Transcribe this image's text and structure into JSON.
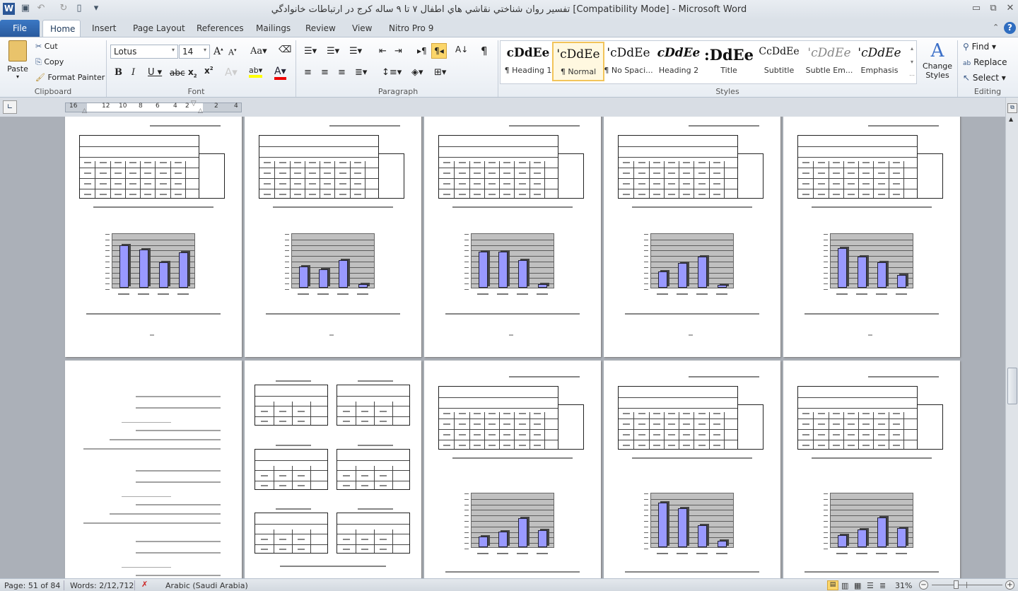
{
  "window": {
    "title": "تفسير روان شناختي نقاشي هاي اطفال ۷ تا ۹ ساله كرج در ارتباطات خانوادگي [Compatibility Mode]  -  Microsoft Word",
    "app_icon": "word-icon"
  },
  "quick_access": [
    "save-icon",
    "undo-icon",
    "redo-icon",
    "new-document-icon",
    "customize-icon"
  ],
  "tabs": [
    {
      "label": "File"
    },
    {
      "label": "Home",
      "active": true
    },
    {
      "label": "Insert"
    },
    {
      "label": "Page Layout"
    },
    {
      "label": "References"
    },
    {
      "label": "Mailings"
    },
    {
      "label": "Review"
    },
    {
      "label": "View"
    },
    {
      "label": "Nitro Pro 9"
    }
  ],
  "ribbon": {
    "clipboard": {
      "label": "Clipboard",
      "paste": "Paste",
      "cut": "Cut",
      "copy": "Copy",
      "format_painter": "Format Painter"
    },
    "font": {
      "label": "Font",
      "font_name": "Lotus",
      "font_size": "14"
    },
    "paragraph": {
      "label": "Paragraph"
    },
    "styles": {
      "label": "Styles",
      "items": [
        {
          "sample": "cDdEe",
          "name": "¶ Heading 1"
        },
        {
          "sample": "'cDdEe",
          "name": "¶ Normal",
          "selected": true
        },
        {
          "sample": "'cDdEe",
          "name": "¶ No Spaci..."
        },
        {
          "sample": "cDdEe",
          "name": "Heading 2"
        },
        {
          "sample": ":DdEe",
          "name": "Title"
        },
        {
          "sample": "CcDdEe",
          "name": "Subtitle"
        },
        {
          "sample": "'cDdEe",
          "name": "Subtle Em..."
        },
        {
          "sample": "'cDdEe",
          "name": "Emphasis"
        }
      ],
      "change_styles": "Change Styles"
    },
    "editing": {
      "label": "Editing",
      "find": "Find",
      "replace": "Replace",
      "select": "Select"
    }
  },
  "ruler": {
    "ticks": [
      "16",
      "12",
      "10",
      "8",
      "6",
      "4",
      "2",
      "2",
      "4"
    ]
  },
  "pages": {
    "top": [
      {
        "chart": [
          77,
          69,
          46,
          64
        ]
      },
      {
        "chart": [
          38,
          33,
          50,
          7
        ]
      },
      {
        "chart": [
          65,
          65,
          50,
          7
        ]
      },
      {
        "chart": [
          30,
          45,
          56,
          5
        ]
      },
      {
        "chart": [
          72,
          57,
          46,
          23
        ]
      }
    ],
    "bottom": [
      {
        "kind": "text"
      },
      {
        "kind": "mini-tables"
      },
      {
        "chart": [
          19,
          28,
          52,
          31
        ]
      },
      {
        "chart": [
          81,
          71,
          40,
          12
        ]
      },
      {
        "chart": [
          22,
          32,
          54,
          34
        ]
      }
    ]
  },
  "status": {
    "page": "Page: 51 of 84",
    "words": "Words: 2/12,712",
    "language": "Arabic (Saudi Arabia)",
    "zoom": "31%",
    "zoom_level": 0.31
  },
  "colors": {
    "bar": "#9999ff",
    "chart_bg": "#c0c0c0",
    "accent": "#2b579a"
  }
}
